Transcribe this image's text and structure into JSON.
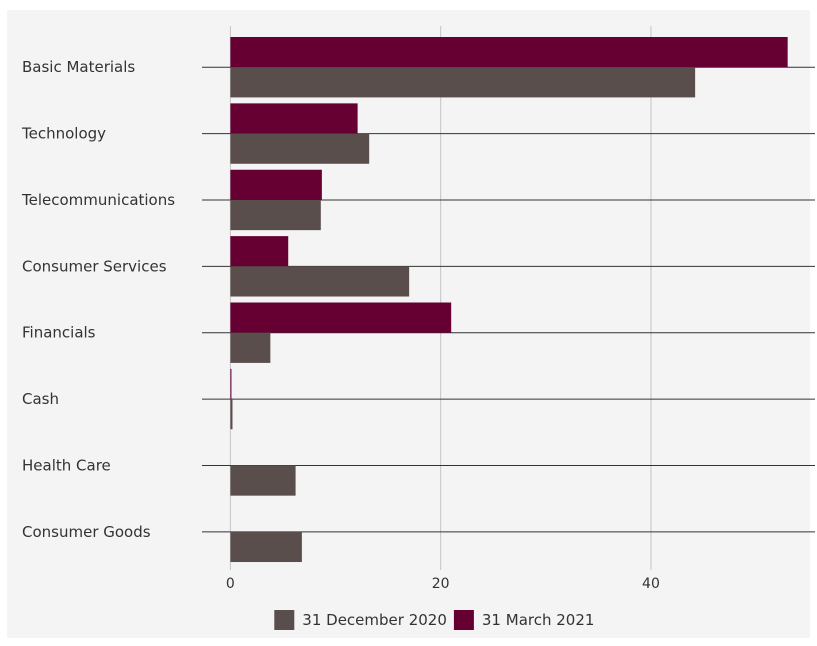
{
  "chart_data": {
    "type": "bar",
    "orientation": "horizontal",
    "categories": [
      "Basic Materials",
      "Technology",
      "Telecommunications",
      "Consumer Services",
      "Financials",
      "Cash",
      "Health Care",
      "Consumer Goods"
    ],
    "series": [
      {
        "name": "31 March 2021",
        "color": "#660033",
        "values": [
          53.0,
          12.1,
          8.7,
          5.5,
          21.0,
          0.1,
          0.0,
          0.0
        ]
      },
      {
        "name": "31 December 2020",
        "color": "#5a4e4c",
        "values": [
          44.2,
          13.2,
          8.6,
          17.0,
          3.8,
          0.2,
          6.2,
          6.8
        ]
      }
    ],
    "xticks": [
      0,
      20,
      40
    ],
    "xlim": [
      -2.7,
      55.6
    ],
    "grid": true,
    "legend": {
      "placement": "bottom-center",
      "entries": [
        {
          "label": "31 December 2020",
          "color": "#5a4e4c"
        },
        {
          "label": "31 March 2021",
          "color": "#660033"
        }
      ]
    }
  }
}
